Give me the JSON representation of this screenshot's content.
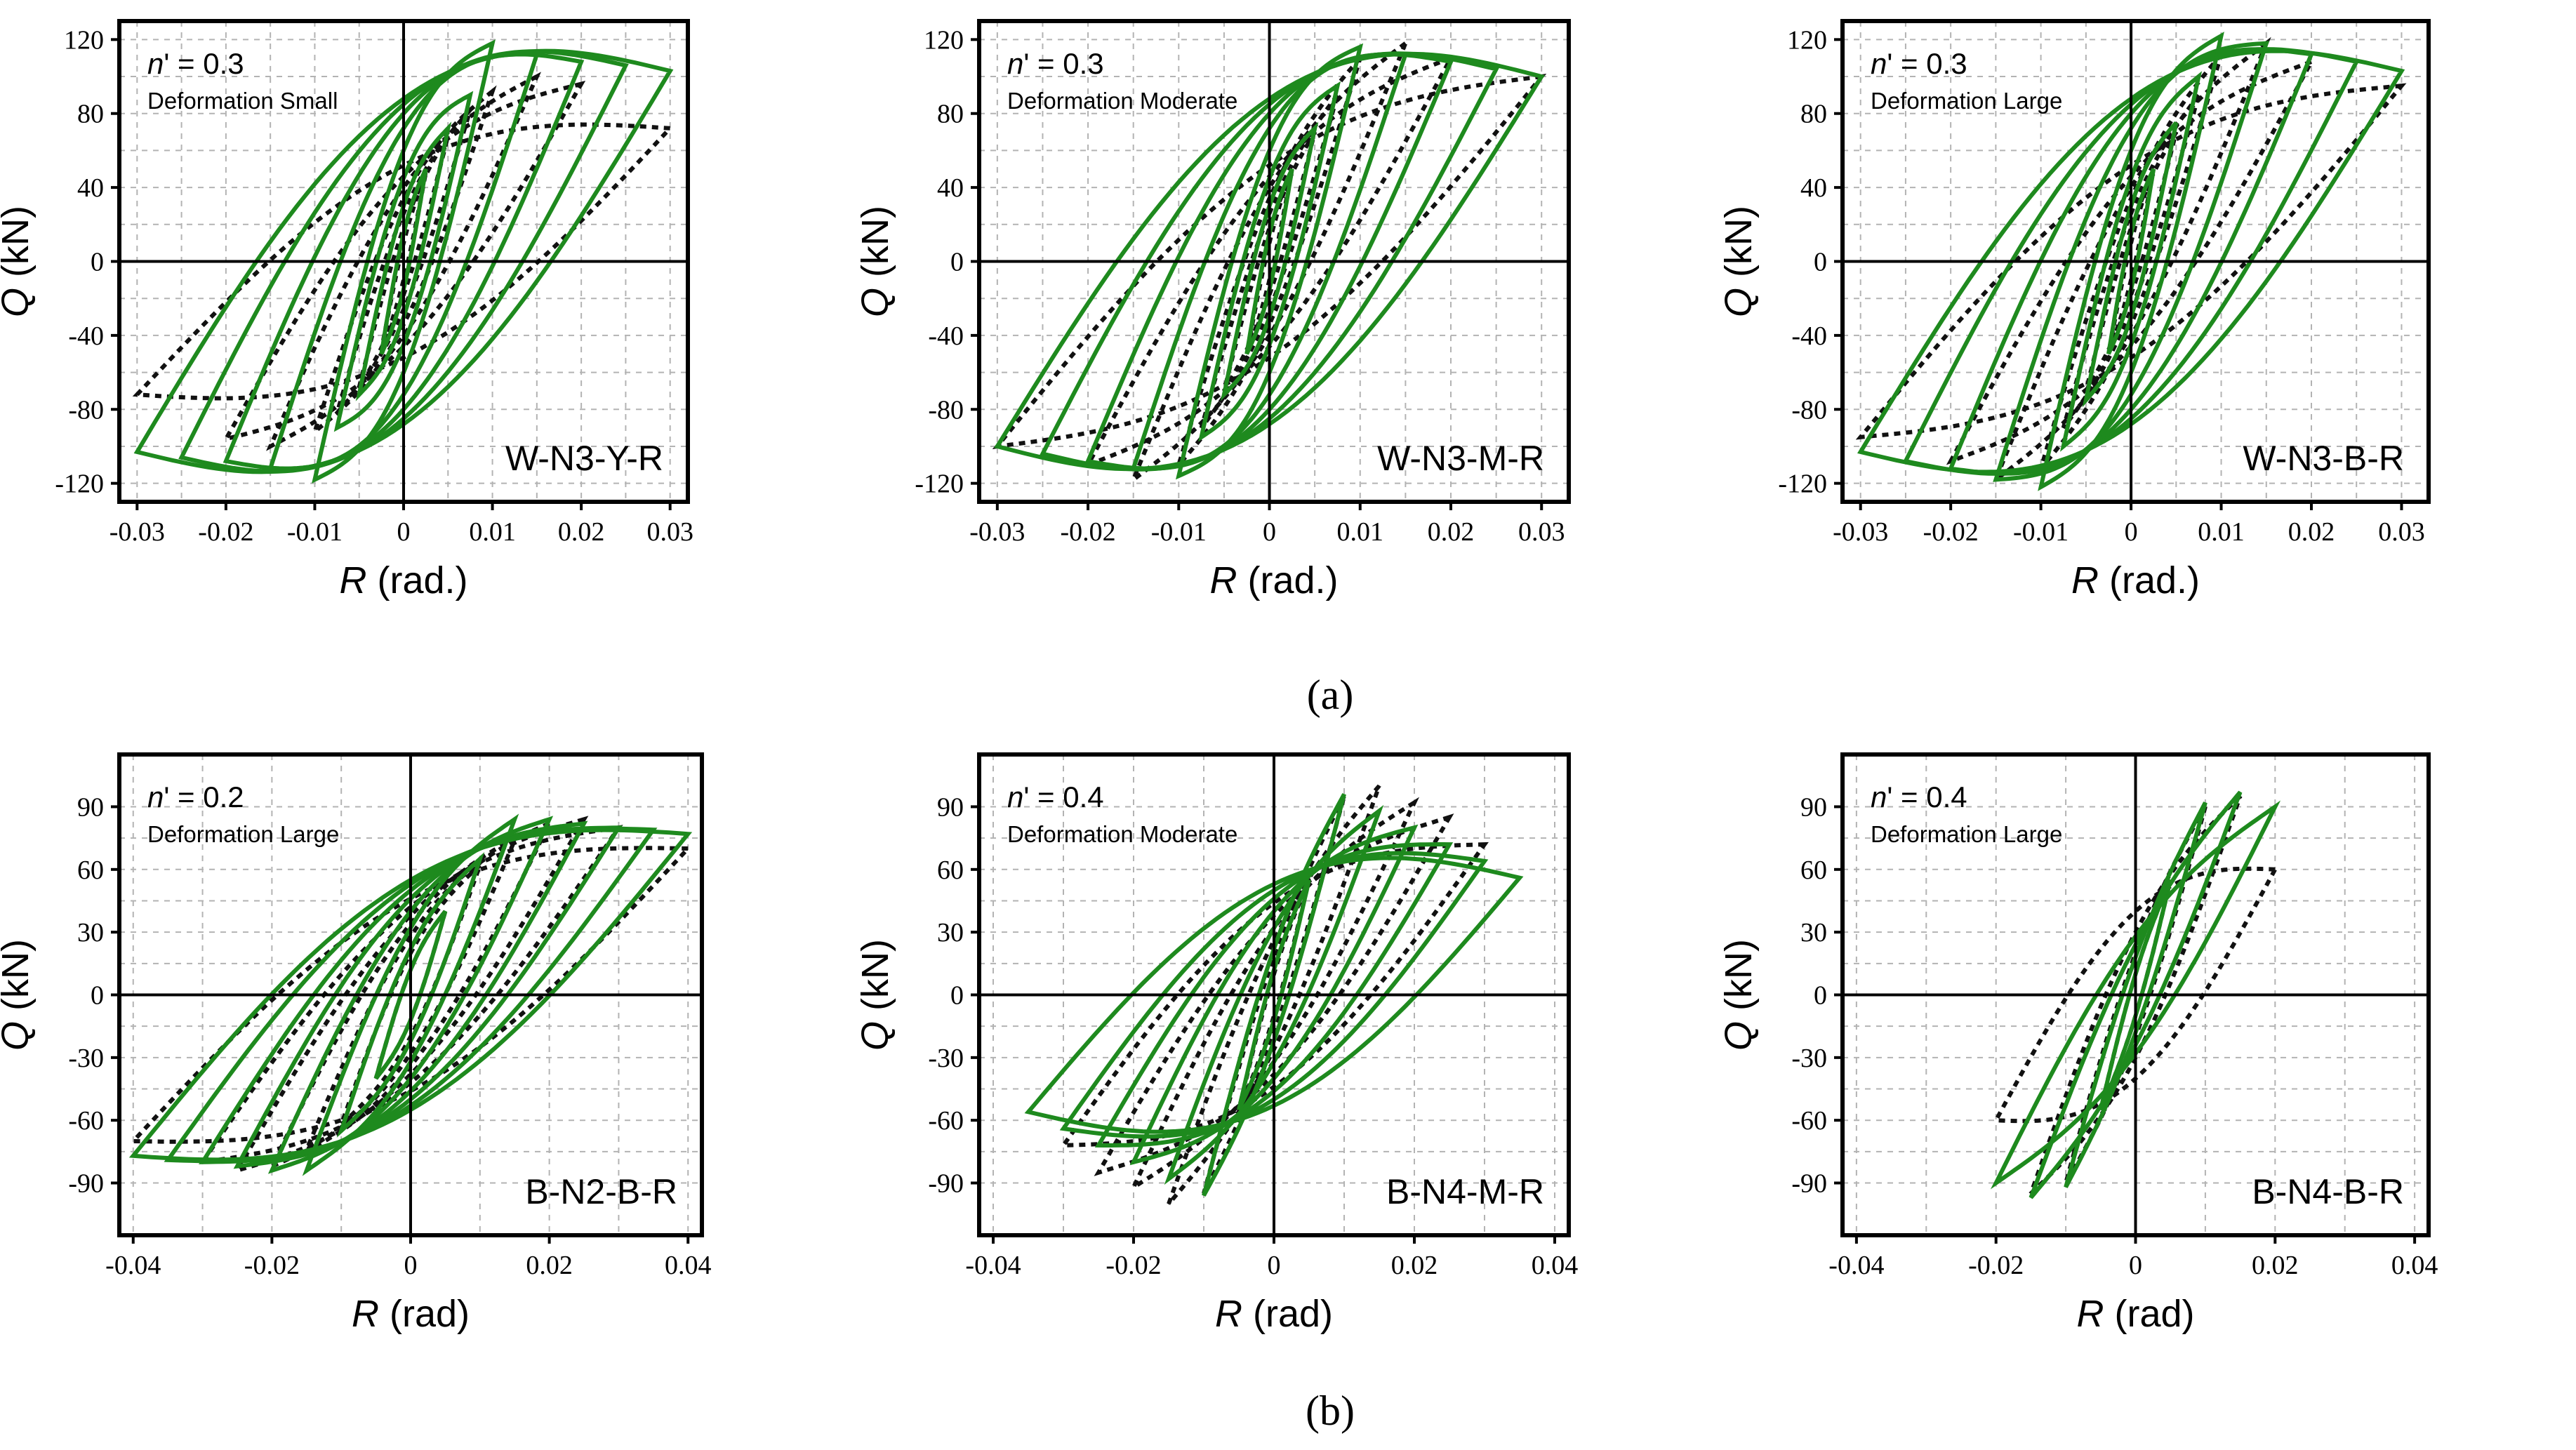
{
  "figure": {
    "caption_a": "(a)",
    "caption_b": "(b)"
  },
  "colors": {
    "analysis": "#1e8a1e",
    "experiment": "#111111",
    "grid": "#b3b3b3"
  },
  "chart_data": [
    {
      "type": "line",
      "specimen": "W-N3-Y-R",
      "n_label": "' = 0.3",
      "deformation": "Deformation Small",
      "xlabel_unit": " (rad.)",
      "ylabel_unit": " (kN)",
      "xlim": [
        -0.032,
        0.032
      ],
      "ylim": [
        -130,
        130
      ],
      "xticks": [
        -0.03,
        -0.02,
        -0.01,
        0,
        0.01,
        0.02,
        0.03
      ],
      "xtick_labels": [
        "-0.03",
        "-0.02",
        "-0.01",
        "0",
        "0.01",
        "0.02",
        "0.03"
      ],
      "yticks": [
        -120,
        -80,
        -40,
        0,
        40,
        80,
        120
      ],
      "ytick_labels": [
        "-120",
        "-80",
        "-40",
        "0",
        "40",
        "80",
        "120"
      ],
      "exp_amplitudes": [
        0.0025,
        0.005,
        0.0075,
        0.01,
        0.015,
        0.02,
        0.03
      ],
      "exp_peaks": [
        48,
        68,
        82,
        92,
        100,
        96,
        72
      ],
      "exp_loop_width": [
        10,
        18,
        26,
        34,
        40,
        46,
        52
      ],
      "ana_amplitudes": [
        0.0025,
        0.005,
        0.0075,
        0.01,
        0.015,
        0.02,
        0.025,
        0.03
      ],
      "ana_peaks": [
        50,
        72,
        90,
        118,
        112,
        108,
        106,
        103
      ],
      "ana_loop_width": [
        15,
        30,
        45,
        60,
        72,
        80,
        85,
        88
      ]
    },
    {
      "type": "line",
      "specimen": "W-N3-M-R",
      "n_label": "' = 0.3",
      "deformation": "Deformation Moderate",
      "xlabel_unit": " (rad.)",
      "ylabel_unit": " (kN)",
      "xlim": [
        -0.032,
        0.033
      ],
      "ylim": [
        -130,
        130
      ],
      "xticks": [
        -0.03,
        -0.02,
        -0.01,
        0,
        0.01,
        0.02,
        0.03
      ],
      "xtick_labels": [
        "-0.03",
        "-0.02",
        "-0.01",
        "0",
        "0.01",
        "0.02",
        "0.03"
      ],
      "yticks": [
        -120,
        -80,
        -40,
        0,
        40,
        80,
        120
      ],
      "ytick_labels": [
        "-120",
        "-80",
        "-40",
        "0",
        "40",
        "80",
        "120"
      ],
      "exp_amplitudes": [
        0.0025,
        0.005,
        0.0075,
        0.01,
        0.015,
        0.02,
        0.03
      ],
      "exp_peaks": [
        50,
        70,
        90,
        110,
        118,
        110,
        100
      ],
      "exp_loop_width": [
        10,
        18,
        26,
        34,
        40,
        46,
        52
      ],
      "ana_amplitudes": [
        0.0025,
        0.005,
        0.0075,
        0.01,
        0.015,
        0.02,
        0.025,
        0.03
      ],
      "ana_peaks": [
        50,
        72,
        95,
        116,
        112,
        108,
        104,
        100
      ],
      "ana_loop_width": [
        15,
        30,
        45,
        60,
        72,
        80,
        85,
        88
      ]
    },
    {
      "type": "line",
      "specimen": "W-N3-B-R",
      "n_label": "' = 0.3",
      "deformation": "Deformation Large",
      "xlabel_unit": " (rad.)",
      "ylabel_unit": " (kN)",
      "xlim": [
        -0.032,
        0.033
      ],
      "ylim": [
        -130,
        130
      ],
      "xticks": [
        -0.03,
        -0.02,
        -0.01,
        0,
        0.01,
        0.02,
        0.03
      ],
      "xtick_labels": [
        "-0.03",
        "-0.02",
        "-0.01",
        "0",
        "0.01",
        "0.02",
        "0.03"
      ],
      "yticks": [
        -120,
        -80,
        -40,
        0,
        40,
        80,
        120
      ],
      "ytick_labels": [
        "-120",
        "-80",
        "-40",
        "0",
        "40",
        "80",
        "120"
      ],
      "exp_amplitudes": [
        0.0025,
        0.005,
        0.0075,
        0.01,
        0.015,
        0.02,
        0.03
      ],
      "exp_peaks": [
        50,
        70,
        90,
        112,
        118,
        108,
        95
      ],
      "exp_loop_width": [
        10,
        18,
        26,
        34,
        40,
        46,
        52
      ],
      "ana_amplitudes": [
        0.0025,
        0.005,
        0.0075,
        0.01,
        0.015,
        0.02,
        0.025,
        0.03
      ],
      "ana_peaks": [
        50,
        75,
        100,
        122,
        118,
        112,
        108,
        103
      ],
      "ana_loop_width": [
        15,
        30,
        45,
        60,
        72,
        80,
        85,
        88
      ]
    },
    {
      "type": "line",
      "specimen": "B-N2-B-R",
      "n_label": "' = 0.2",
      "deformation": "Deformation Large",
      "xlabel_unit": " (rad)",
      "ylabel_unit": " (kN)",
      "xlim": [
        -0.042,
        0.042
      ],
      "ylim": [
        -115,
        115
      ],
      "xticks": [
        -0.04,
        -0.02,
        0,
        0.02,
        0.04
      ],
      "xtick_labels": [
        "-0.04",
        "-0.02",
        "0",
        "0.02",
        "0.04"
      ],
      "yticks": [
        -90,
        -60,
        -30,
        0,
        30,
        60,
        90
      ],
      "ytick_labels": [
        "-90",
        "-60",
        "-30",
        "0",
        "30",
        "60",
        "90"
      ],
      "exp_amplitudes": [
        0.005,
        0.01,
        0.015,
        0.02,
        0.025,
        0.03,
        0.04
      ],
      "exp_peaks": [
        40,
        62,
        74,
        82,
        84,
        80,
        70
      ],
      "exp_loop_width": [
        12,
        20,
        28,
        34,
        38,
        42,
        46
      ],
      "ana_amplitudes": [
        0.005,
        0.01,
        0.015,
        0.02,
        0.025,
        0.03,
        0.035,
        0.04
      ],
      "ana_peaks": [
        40,
        65,
        84,
        84,
        82,
        80,
        79,
        77
      ],
      "ana_loop_width": [
        12,
        22,
        32,
        40,
        46,
        50,
        53,
        55
      ]
    },
    {
      "type": "line",
      "specimen": "B-N4-M-R",
      "n_label": "' = 0.4",
      "deformation": "Deformation Moderate",
      "xlabel_unit": " (rad)",
      "ylabel_unit": " (kN)",
      "xlim": [
        -0.042,
        0.042
      ],
      "ylim": [
        -115,
        115
      ],
      "xticks": [
        -0.04,
        -0.02,
        0,
        0.02,
        0.04
      ],
      "xtick_labels": [
        "-0.04",
        "-0.02",
        "0",
        "0.02",
        "0.04"
      ],
      "yticks": [
        -90,
        -60,
        -30,
        0,
        30,
        60,
        90
      ],
      "ytick_labels": [
        "-90",
        "-60",
        "-30",
        "0",
        "30",
        "60",
        "90"
      ],
      "exp_amplitudes": [
        0.005,
        0.01,
        0.015,
        0.02,
        0.025,
        0.03
      ],
      "exp_peaks": [
        55,
        95,
        100,
        92,
        85,
        72
      ],
      "exp_loop_width": [
        10,
        18,
        26,
        32,
        38,
        44
      ],
      "ana_amplitudes": [
        0.005,
        0.01,
        0.015,
        0.02,
        0.025,
        0.03,
        0.035
      ],
      "ana_peaks": [
        55,
        96,
        88,
        80,
        72,
        64,
        56
      ],
      "ana_loop_width": [
        12,
        22,
        32,
        40,
        46,
        50,
        53
      ]
    },
    {
      "type": "line",
      "specimen": "B-N4-B-R",
      "n_label": "' = 0.4",
      "deformation": "Deformation Large",
      "xlabel_unit": " (rad)",
      "ylabel_unit": " (kN)",
      "xlim": [
        -0.042,
        0.042
      ],
      "ylim": [
        -115,
        115
      ],
      "xticks": [
        -0.04,
        -0.02,
        0,
        0.02,
        0.04
      ],
      "xtick_labels": [
        "-0.04",
        "-0.02",
        "0",
        "0.02",
        "0.04"
      ],
      "yticks": [
        -90,
        -60,
        -30,
        0,
        30,
        60,
        90
      ],
      "ytick_labels": [
        "-90",
        "-60",
        "-30",
        "0",
        "30",
        "60",
        "90"
      ],
      "exp_amplitudes": [
        0.005,
        0.01,
        0.015,
        0.02
      ],
      "exp_peaks": [
        55,
        90,
        95,
        60
      ],
      "exp_loop_width": [
        10,
        20,
        30,
        40
      ],
      "ana_amplitudes": [
        0.005,
        0.01,
        0.015,
        0.02
      ],
      "ana_peaks": [
        55,
        92,
        97,
        90
      ],
      "ana_loop_width": [
        10,
        18,
        24,
        28
      ]
    }
  ]
}
